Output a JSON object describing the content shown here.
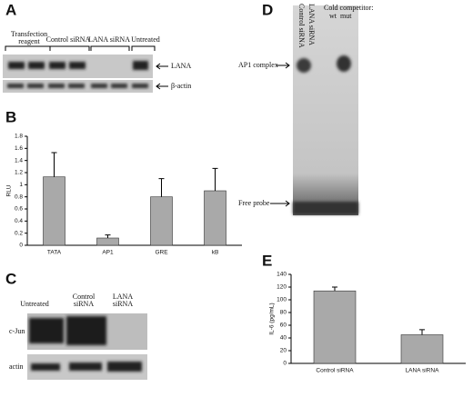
{
  "panels": {
    "a": {
      "label": "A",
      "lanes": [
        [
          "Transfection",
          "reagent"
        ],
        "Control siRNA",
        "LANA siRNA",
        "Untreated"
      ],
      "bands": [
        "LANA",
        "β-actin"
      ]
    },
    "c": {
      "label": "C",
      "lanes": [
        "Untreated",
        [
          "Control",
          "siRNA"
        ],
        [
          "LANA",
          "siRNA"
        ]
      ],
      "bands": [
        "c-Jun",
        "actin"
      ]
    },
    "d": {
      "label": "D",
      "lanes": [
        "Control siRNA",
        "LANA siRNA"
      ],
      "competitor": "Cold competitor:",
      "competitor_lanes": [
        "wt",
        "mut"
      ],
      "bands": [
        "AP1 complex",
        "Free probe"
      ]
    }
  },
  "chart_data": [
    {
      "type": "bar",
      "label": "B",
      "y_label": "RLU",
      "categories": [
        "TATA",
        "AP1",
        "GRE",
        "kB"
      ],
      "values": [
        1.13,
        0.12,
        0.8,
        0.9
      ],
      "errors": [
        0.4,
        0.05,
        0.3,
        0.37
      ],
      "color": "#a9a9a9",
      "ylim": [
        0,
        1.8
      ],
      "yticks": [
        0,
        0.2,
        0.4,
        0.6,
        0.8,
        1,
        1.2,
        1.4,
        1.6,
        1.8
      ]
    },
    {
      "type": "bar",
      "label": "E",
      "y_label": "IL-6 (pg/mL)",
      "categories": [
        "Control siRNA",
        "LANA siRNA"
      ],
      "values": [
        114,
        45
      ],
      "errors": [
        6,
        8
      ],
      "color": "#a9a9a9",
      "ylim": [
        0,
        140
      ],
      "yticks": [
        0,
        20,
        40,
        60,
        80,
        100,
        120,
        140
      ]
    }
  ]
}
